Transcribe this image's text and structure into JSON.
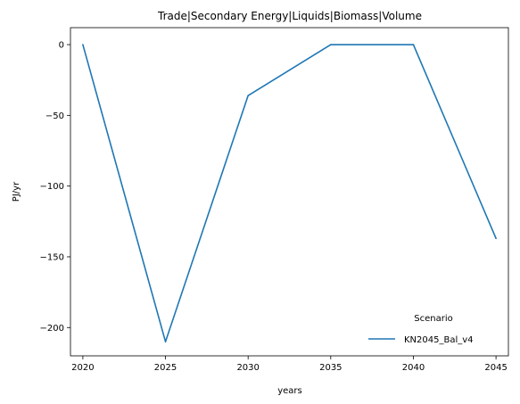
{
  "chart_data": {
    "type": "line",
    "title": "Trade|Secondary Energy|Liquids|Biomass|Volume",
    "xlabel": "years",
    "ylabel": "PJ/yr",
    "x": [
      2020,
      2025,
      2030,
      2035,
      2040,
      2045
    ],
    "xlim": [
      2019.25,
      2045.75
    ],
    "ylim": [
      -220,
      12
    ],
    "xticks": [
      2020,
      2025,
      2030,
      2035,
      2040,
      2045
    ],
    "yticks": [
      0,
      -50,
      -100,
      -150,
      -200
    ],
    "grid": false,
    "legend": {
      "title": "Scenario",
      "placement": "lower-right"
    },
    "series": [
      {
        "name": "KN2045_Bal_v4",
        "color": "#1f77b4",
        "values": [
          0,
          -210,
          -36,
          0,
          0,
          -137
        ]
      }
    ]
  }
}
